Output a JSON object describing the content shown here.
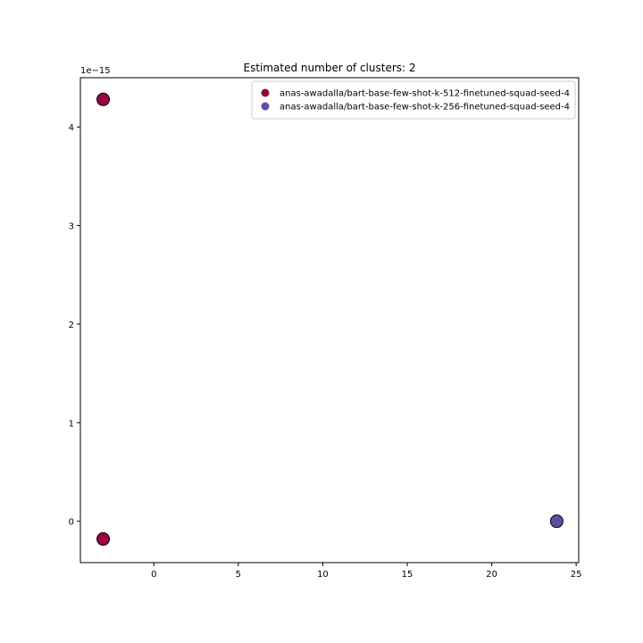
{
  "chart_data": {
    "type": "scatter",
    "title": "Estimated number of clusters: 2",
    "xlabel": "",
    "ylabel": "",
    "y_offset_label": "1e−15",
    "xlim": [
      -4.35,
      25.15
    ],
    "ylim": [
      -0.42,
      4.5
    ],
    "xticks": [
      0,
      5,
      10,
      15,
      20,
      25
    ],
    "yticks": [
      0,
      1,
      2,
      3,
      4
    ],
    "grid": false,
    "legend_position": "top-right",
    "series": [
      {
        "name": "anas-awadalla/bart-base-few-shot-k-512-finetuned-squad-seed-4",
        "color": "#9e0142",
        "points": [
          {
            "x": -3.0,
            "y": 4.28
          },
          {
            "x": -3.0,
            "y": -0.18
          }
        ]
      },
      {
        "name": "anas-awadalla/bart-base-few-shot-k-256-finetuned-squad-seed-4",
        "color": "#5e4fa2",
        "points": [
          {
            "x": 23.85,
            "y": 0.0
          }
        ]
      }
    ]
  }
}
